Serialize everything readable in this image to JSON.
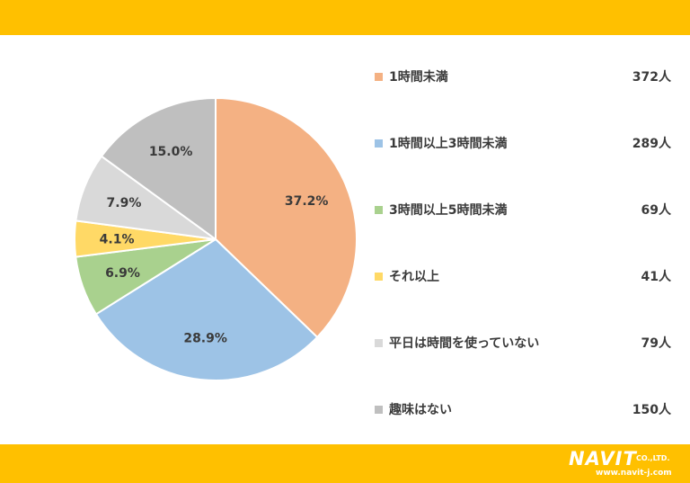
{
  "chart_data": {
    "type": "pie",
    "categories": [
      "1時間未満",
      "1時間以上3時間未満",
      "3時間以上5時間未満",
      "それ以上",
      "平日は時間を使っていない",
      "趣味はない"
    ],
    "values": [
      37.2,
      28.9,
      6.9,
      4.1,
      7.9,
      15.0
    ],
    "value_labels": [
      "37.2%",
      "28.9%",
      "6.9%",
      "4.1%",
      "7.9%",
      "15.0%"
    ],
    "counts": [
      "372人",
      "289人",
      "69人",
      "41人",
      "79人",
      "150人"
    ],
    "colors": [
      "#F4B183",
      "#9DC3E6",
      "#A9D18E",
      "#FFD966",
      "#D9D9D9",
      "#BFBFBF"
    ],
    "start_angle_deg": 0,
    "direction": "clockwise",
    "legend_position": "right"
  },
  "brand": {
    "logo_text": "NAVIT",
    "logo_suffix": "CO.,LTD.",
    "url": "www.navit-j.com"
  },
  "theme": {
    "band_color": "#FFC000",
    "text_color": "#3a3a3a"
  }
}
